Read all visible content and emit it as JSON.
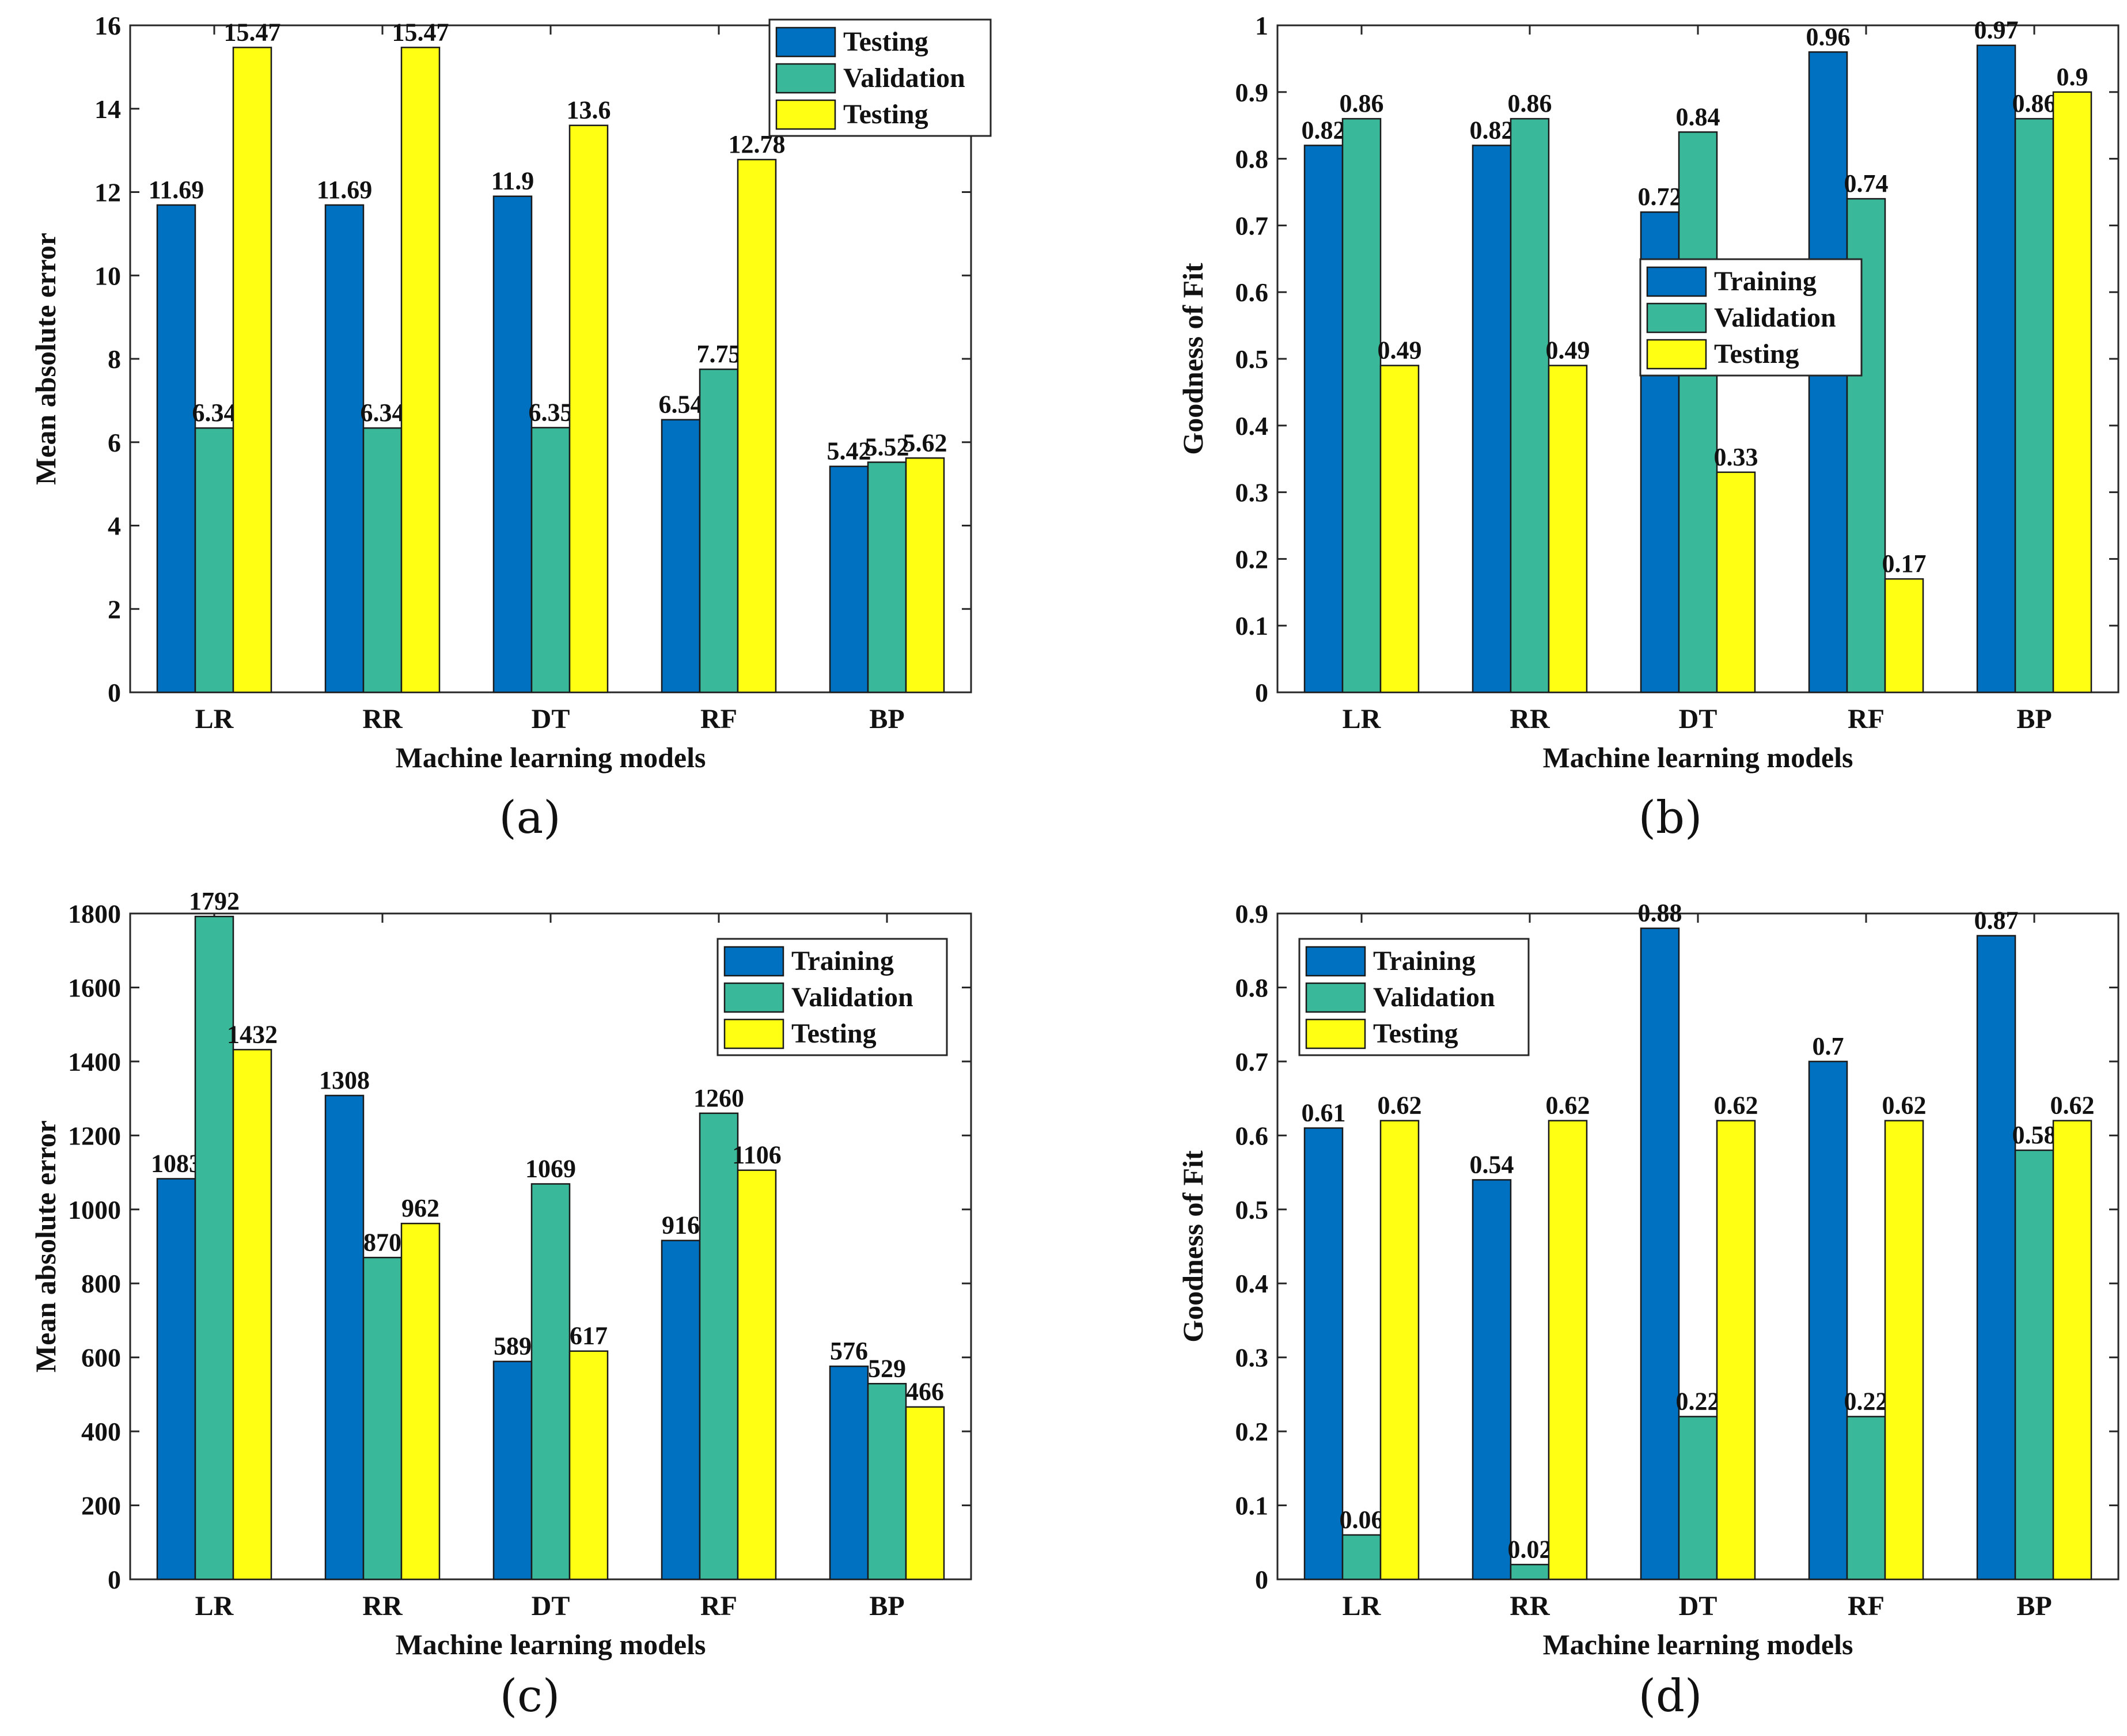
{
  "colors": {
    "series": [
      "#0070c0",
      "#3ab89a",
      "#ffff14"
    ],
    "axis": "#262626"
  },
  "captions": {
    "a": "(a)",
    "b": "(b)",
    "c": "(c)",
    "d": "(d)"
  },
  "chart_data": [
    {
      "type": "bar",
      "id": "a",
      "categories": [
        "LR",
        "RR",
        "DT",
        "RF",
        "BP"
      ],
      "series": [
        {
          "name": "Testing",
          "values": [
            11.69,
            11.69,
            11.9,
            6.54,
            5.42
          ],
          "labels": [
            "11.69",
            "11.69",
            "11.9",
            "6.54",
            "5.42"
          ]
        },
        {
          "name": "Validation",
          "values": [
            6.34,
            6.34,
            6.35,
            7.75,
            5.52
          ],
          "labels": [
            "6.34",
            "6.34",
            "6.35",
            "7.75",
            "5.52"
          ]
        },
        {
          "name": "Testing",
          "values": [
            15.47,
            15.47,
            13.6,
            12.78,
            5.62
          ],
          "labels": [
            "15.47",
            "15.47",
            "13.6",
            "12.78",
            "5.62"
          ]
        }
      ],
      "xlabel": "Machine learning models",
      "ylabel": "Mean absolute error",
      "ylim": [
        0,
        16
      ],
      "yticks": [
        0,
        2,
        4,
        6,
        8,
        10,
        12,
        14,
        16
      ],
      "ytick_labels": [
        "0",
        "2",
        "4",
        "6",
        "8",
        "10",
        "12",
        "14",
        "16"
      ],
      "legend_position": "top-right"
    },
    {
      "type": "bar",
      "id": "b",
      "categories": [
        "LR",
        "RR",
        "DT",
        "RF",
        "BP"
      ],
      "series": [
        {
          "name": "Training",
          "values": [
            0.82,
            0.82,
            0.72,
            0.96,
            0.97
          ],
          "labels": [
            "0.82",
            "0.82",
            "0.72",
            "0.96",
            "0.97"
          ]
        },
        {
          "name": "Validation",
          "values": [
            0.86,
            0.86,
            0.84,
            0.74,
            0.86
          ],
          "labels": [
            "0.86",
            "0.86",
            "0.84",
            "0.74",
            "0.86"
          ]
        },
        {
          "name": "Testing",
          "values": [
            0.49,
            0.49,
            0.33,
            0.17,
            0.9
          ],
          "labels": [
            "0.49",
            "0.49",
            "0.33",
            "0.17",
            "0.9"
          ]
        }
      ],
      "xlabel": "Machine learning models",
      "ylabel": "Goodness of Fit",
      "ylim": [
        0,
        1
      ],
      "yticks": [
        0,
        0.1,
        0.2,
        0.3,
        0.4,
        0.5,
        0.6,
        0.7,
        0.8,
        0.9,
        1
      ],
      "ytick_labels": [
        "0",
        "0.1",
        "0.2",
        "0.3",
        "0.4",
        "0.5",
        "0.6",
        "0.7",
        "0.8",
        "0.9",
        "1"
      ],
      "legend_position": "center"
    },
    {
      "type": "bar",
      "id": "c",
      "categories": [
        "LR",
        "RR",
        "DT",
        "RF",
        "BP"
      ],
      "series": [
        {
          "name": "Training",
          "values": [
            1083,
            1308,
            589,
            916,
            576
          ],
          "labels": [
            "1083",
            "1308",
            "589",
            "916",
            "576"
          ]
        },
        {
          "name": "Validation",
          "values": [
            1792,
            870,
            1069,
            1260,
            529
          ],
          "labels": [
            "1792",
            "870",
            "1069",
            "1260",
            "529"
          ]
        },
        {
          "name": "Testing",
          "values": [
            1432,
            962,
            617,
            1106,
            466
          ],
          "labels": [
            "1432",
            "962",
            "617",
            "1106",
            "466"
          ]
        }
      ],
      "xlabel": "Machine learning models",
      "ylabel": "Mean absolute error",
      "ylim": [
        0,
        1800
      ],
      "yticks": [
        0,
        200,
        400,
        600,
        800,
        1000,
        1200,
        1400,
        1600,
        1800
      ],
      "ytick_labels": [
        "0",
        "200",
        "400",
        "600",
        "800",
        "1000",
        "1200",
        "1400",
        "1600",
        "1800"
      ],
      "legend_position": "top-right"
    },
    {
      "type": "bar",
      "id": "d",
      "categories": [
        "LR",
        "RR",
        "DT",
        "RF",
        "BP"
      ],
      "series": [
        {
          "name": "Training",
          "values": [
            0.61,
            0.54,
            0.88,
            0.7,
            0.87
          ],
          "labels": [
            "0.61",
            "0.54",
            "0.88",
            "0.7",
            "0.87"
          ]
        },
        {
          "name": "Validation",
          "values": [
            0.06,
            0.02,
            0.22,
            0.22,
            0.58
          ],
          "labels": [
            "0.06",
            "0.02",
            "0.22",
            "0.22",
            "0.58"
          ]
        },
        {
          "name": "Testing",
          "values": [
            0.62,
            0.62,
            0.62,
            0.62,
            0.62
          ],
          "labels": [
            "0.62",
            "0.62",
            "0.62",
            "0.62",
            "0.62"
          ]
        }
      ],
      "xlabel": "Machine learning models",
      "ylabel": "Goodness of Fit",
      "ylim": [
        0,
        0.9
      ],
      "yticks": [
        0,
        0.1,
        0.2,
        0.3,
        0.4,
        0.5,
        0.6,
        0.7,
        0.8,
        0.9
      ],
      "ytick_labels": [
        "0",
        "0.1",
        "0.2",
        "0.3",
        "0.4",
        "0.5",
        "0.6",
        "0.7",
        "0.8",
        "0.9"
      ],
      "legend_position": "top-left"
    }
  ]
}
